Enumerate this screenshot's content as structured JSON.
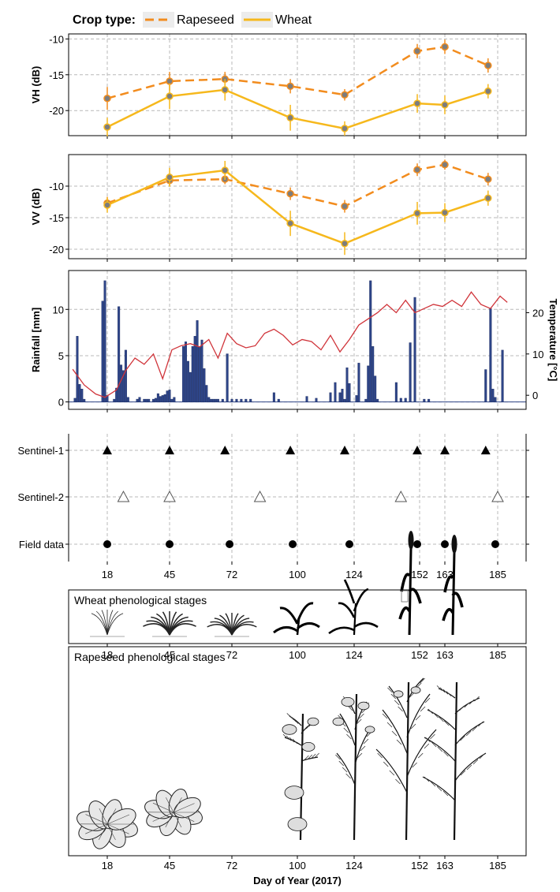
{
  "legend": {
    "title": "Crop type:",
    "items": [
      {
        "name": "Rapeseed",
        "color": "#F28C1E",
        "dash": true
      },
      {
        "name": "Wheat",
        "color": "#F6B81C",
        "dash": false
      }
    ]
  },
  "x_ticks": [
    18,
    45,
    72,
    100,
    124,
    152,
    163,
    185
  ],
  "x_label": "Day of Year (2017)",
  "chart_data": [
    {
      "type": "line",
      "ylabel": "VH (dB)",
      "ylim": [
        -23.5,
        -9.3
      ],
      "yticks": [
        -20,
        -15,
        -10
      ],
      "x": [
        18,
        45,
        69,
        97,
        120,
        151,
        163,
        181
      ],
      "series": [
        {
          "name": "Rapeseed",
          "values": [
            -18.3,
            -15.9,
            -15.6,
            -16.6,
            -17.8,
            -11.7,
            -11.1,
            -13.7
          ],
          "err": [
            1.6,
            1.3,
            1.0,
            1.0,
            0.8,
            1.0,
            1.0,
            1.0
          ]
        },
        {
          "name": "Wheat",
          "values": [
            -22.3,
            -18.0,
            -17.1,
            -21.0,
            -22.5,
            -19.0,
            -19.2,
            -17.3
          ],
          "err": [
            1.3,
            1.8,
            1.5,
            1.8,
            1.0,
            1.3,
            1.3,
            1.0
          ]
        }
      ]
    },
    {
      "type": "line",
      "ylabel": "VV (dB)",
      "ylim": [
        -21.5,
        -5
      ],
      "yticks": [
        -20,
        -15,
        -10
      ],
      "x": [
        18,
        45,
        69,
        97,
        120,
        151,
        163,
        181
      ],
      "series": [
        {
          "name": "Rapeseed",
          "values": [
            -12.7,
            -9.1,
            -8.9,
            -11.2,
            -13.2,
            -7.4,
            -6.6,
            -8.9
          ],
          "err": [
            1.0,
            0.8,
            0.8,
            1.0,
            1.0,
            1.0,
            0.8,
            1.0
          ]
        },
        {
          "name": "Wheat",
          "values": [
            -13.0,
            -8.6,
            -7.5,
            -15.9,
            -19.1,
            -14.3,
            -14.2,
            -11.9
          ],
          "err": [
            1.2,
            1.5,
            1.5,
            2.0,
            1.8,
            1.8,
            1.5,
            1.2
          ]
        }
      ]
    },
    {
      "type": "bar",
      "ylabel": "Rainfall [mm]",
      "y2label": "Temperature [°C]",
      "ylim": [
        -0.8,
        14.2
      ],
      "yticks": [
        0,
        5,
        10
      ],
      "y2lim": [
        -3.4,
        30.2
      ],
      "y2ticks": [
        0,
        10,
        20
      ],
      "rain_x": [
        4,
        5,
        6,
        7,
        8,
        16,
        17,
        18,
        21,
        22,
        23,
        24,
        25,
        26,
        27,
        31,
        32,
        34,
        35,
        36,
        38,
        39,
        40,
        41,
        42,
        43,
        44,
        45,
        46,
        47,
        51,
        52,
        53,
        54,
        55,
        56,
        57,
        58,
        59,
        60,
        61,
        62,
        63,
        64,
        65,
        66,
        68,
        70,
        72,
        74,
        76,
        78,
        80,
        90,
        92,
        104,
        108,
        114,
        116,
        118,
        119,
        120,
        121,
        122,
        125,
        126,
        129,
        130,
        131,
        132,
        133,
        134,
        142,
        144,
        146,
        148,
        150,
        154,
        156,
        180,
        182,
        183,
        184,
        187
      ],
      "rain_v": [
        0.4,
        7.1,
        1.9,
        1.4,
        0.3,
        10.9,
        13.1,
        0.7,
        0.3,
        1.5,
        10.3,
        4.0,
        3.4,
        5.6,
        0.5,
        0.3,
        0.5,
        0.3,
        0.3,
        0.3,
        0.3,
        0.4,
        0.9,
        0.6,
        0.7,
        0.8,
        1.2,
        1.3,
        0.3,
        0.5,
        6.0,
        6.5,
        4.4,
        3.2,
        6.0,
        7.1,
        8.8,
        6.0,
        6.7,
        3.6,
        1.8,
        0.5,
        0.3,
        0.3,
        0.3,
        0.3,
        0.3,
        5.2,
        0.3,
        0.3,
        0.3,
        0.3,
        0.3,
        1.0,
        0.3,
        0.6,
        0.4,
        1.0,
        2.1,
        1.0,
        1.4,
        0.3,
        3.7,
        2.0,
        0.7,
        4.2,
        0.3,
        3.9,
        13.1,
        6.0,
        2.8,
        0.3,
        2.1,
        0.4,
        0.4,
        6.4,
        11.3,
        0.3,
        0.3,
        3.5,
        10.1,
        1.4,
        0.5,
        5.6
      ],
      "temp_days": [
        3,
        8,
        13,
        17,
        22,
        26,
        30,
        34,
        38,
        42,
        46,
        50,
        54,
        58,
        62,
        66,
        70,
        74,
        78,
        82,
        86,
        90,
        94,
        98,
        102,
        106,
        110,
        114,
        118,
        122,
        126,
        130,
        134,
        138,
        142,
        146,
        150,
        154,
        158,
        162,
        166,
        170,
        174,
        178,
        182,
        186,
        189
      ],
      "temp_vals": [
        6.3,
        2.5,
        0.3,
        -0.5,
        1.3,
        6.0,
        9.0,
        7.5,
        10.0,
        4.0,
        11.0,
        12.0,
        12.5,
        11.7,
        13.5,
        9.0,
        15.0,
        12.5,
        11.5,
        12.0,
        15.0,
        16.0,
        14.5,
        12.2,
        13.5,
        13.0,
        11.0,
        14.5,
        10.5,
        13.5,
        17.0,
        18.5,
        20.0,
        22.0,
        20.0,
        23.0,
        20.0,
        21.0,
        22.0,
        21.5,
        23.0,
        21.5,
        25.0,
        22.0,
        21.0,
        24.0,
        22.5
      ],
      "bar_color": "#2E4588",
      "temp_color": "#D0343A"
    },
    {
      "type": "scatter",
      "rows": [
        {
          "label": "Sentinel-1",
          "marker": "filled-triangle",
          "x": [
            18,
            45,
            69,
            97,
            120,
            151,
            163,
            180
          ]
        },
        {
          "label": "Sentinel-2",
          "marker": "open-triangle",
          "x": [
            25,
            45,
            84,
            144,
            185
          ]
        },
        {
          "label": "Field data",
          "marker": "filled-circle",
          "x": [
            18,
            45,
            71,
            98,
            122,
            151,
            163,
            184
          ]
        }
      ]
    }
  ],
  "wheat_panel": {
    "title": "Wheat phenological stages"
  },
  "rapeseed_panel": {
    "title": "Rapeseed phenological stages"
  }
}
